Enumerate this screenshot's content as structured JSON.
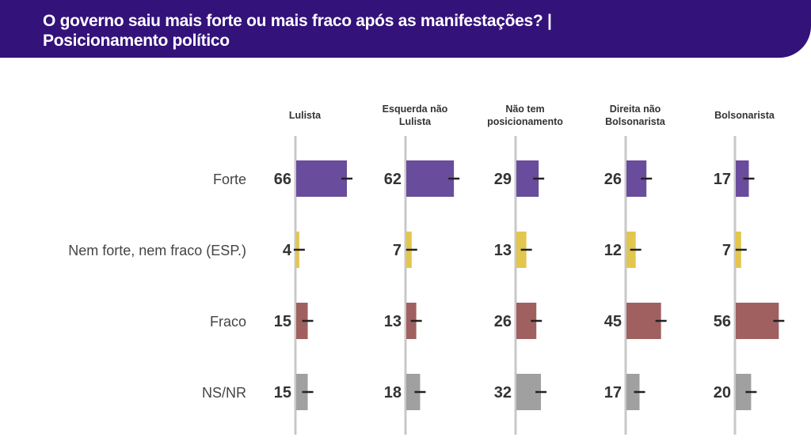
{
  "header": {
    "title_line1": "O governo saiu mais forte ou mais fraco após as manifestações? |",
    "title_line2": "Posicionamento político"
  },
  "chart_data": {
    "type": "bar",
    "orientation": "horizontal-small-multiples",
    "categories": [
      "Forte",
      "Nem forte, nem fraco (ESP.)",
      "Fraco",
      "NS/NR"
    ],
    "category_colors": [
      "#6a4c9c",
      "#e2c64e",
      "#a06060",
      "#a0a0a0"
    ],
    "panels": [
      {
        "name": [
          "Lulista"
        ],
        "values": [
          66,
          4,
          15,
          15
        ]
      },
      {
        "name": [
          "Esquerda não",
          "Lulista"
        ],
        "values": [
          62,
          7,
          13,
          18
        ]
      },
      {
        "name": [
          "Não tem",
          "posicionamento"
        ],
        "values": [
          29,
          13,
          26,
          32
        ]
      },
      {
        "name": [
          "Direita não",
          "Bolsonarista"
        ],
        "values": [
          26,
          12,
          45,
          17
        ]
      },
      {
        "name": [
          "Bolsonarista"
        ],
        "values": [
          17,
          7,
          56,
          20
        ]
      }
    ],
    "error_bars": true,
    "xlim": [
      0,
      100
    ]
  }
}
